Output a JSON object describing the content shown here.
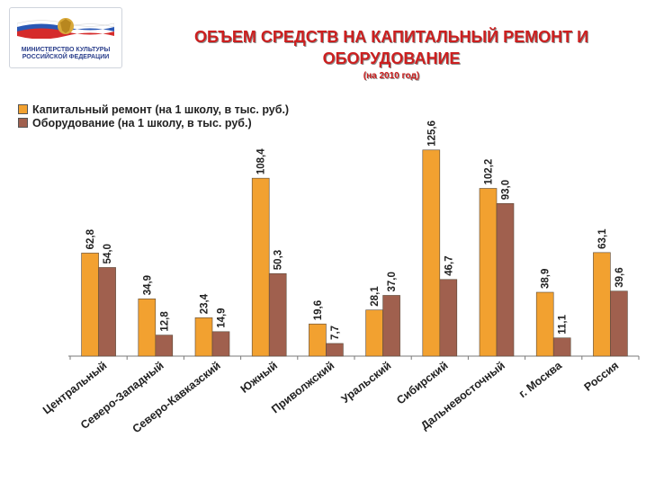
{
  "header": {
    "title_line1": "ОБЪЕМ СРЕДСТВ НА КАПИТАЛЬНЫЙ РЕМОНТ И",
    "title_line2": "ОБОРУДОВАНИЕ",
    "subtitle": "(на 2010 год)"
  },
  "logo": {
    "caption_line1": "МИНИСТЕРСТВО КУЛЬТУРЫ",
    "caption_line2": "РОССИЙСКОЙ ФЕДЕРАЦИИ"
  },
  "colors": {
    "series1": "#f2a130",
    "series2": "#a0604e",
    "title": "#cc1f1f",
    "axis": "#7a7a7a"
  },
  "chart_data": {
    "type": "bar",
    "categories": [
      "Центральный",
      "Северо-Западный",
      "Северо-Кавказский",
      "Южный",
      "Приволжский",
      "Уральский",
      "Сибирский",
      "Дальневосточный",
      "г. Москва",
      "Россия"
    ],
    "series": [
      {
        "name": "Капитальный ремонт (на 1 школу, в тыс. руб.)",
        "values": [
          62.8,
          34.9,
          23.4,
          108.4,
          19.6,
          28.1,
          125.6,
          102.2,
          38.9,
          63.1
        ],
        "labels": [
          "62,8",
          "34,9",
          "23,4",
          "108,4",
          "19,6",
          "28,1",
          "125,6",
          "102,2",
          "38,9",
          "63,1"
        ]
      },
      {
        "name": "Оборудование (на 1 школу, в тыс. руб.)",
        "values": [
          54.0,
          12.8,
          14.9,
          50.3,
          7.7,
          37.0,
          46.7,
          93.0,
          11.1,
          39.6
        ],
        "labels": [
          "54,0",
          "12,8",
          "14,9",
          "50,3",
          "7,7",
          "37,0",
          "46,7",
          "93,0",
          "11,1",
          "39,6"
        ]
      }
    ],
    "title": "ОБЪЕМ СРЕДСТВ НА КАПИТАЛЬНЫЙ РЕМОНТ И ОБОРУДОВАНИЕ",
    "subtitle": "(на 2010 год)",
    "xlabel": "",
    "ylabel": "",
    "ylim": [
      0,
      135
    ],
    "grid": false,
    "legend": "top-left",
    "data_labels_rotated": true
  }
}
